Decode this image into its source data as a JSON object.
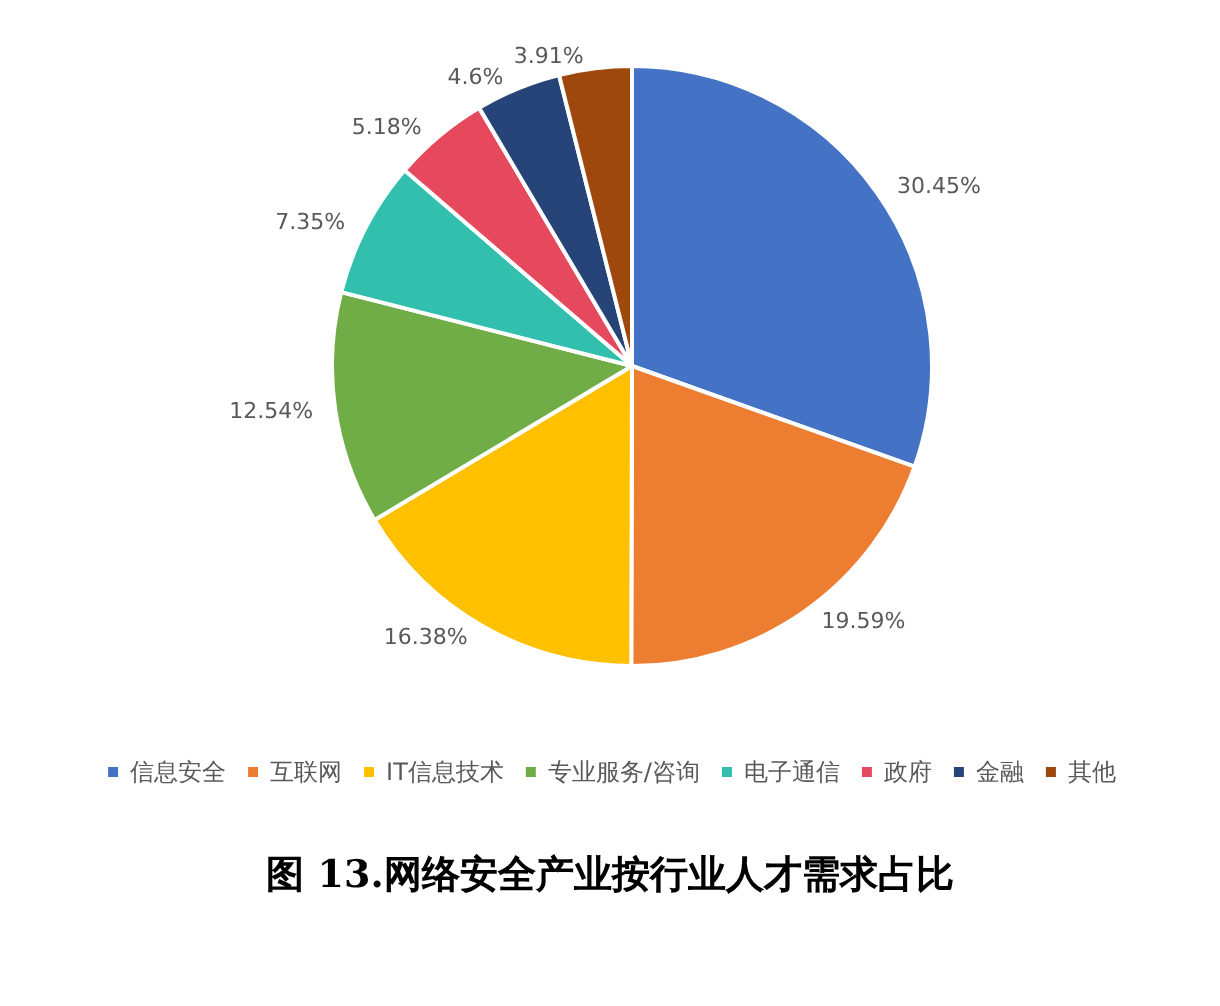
{
  "chart_data": {
    "type": "pie",
    "title": "图 13.网络安全产业按行业人才需求占比",
    "categories": [
      "信息安全",
      "互联网",
      "IT信息技术",
      "专业服务/咨询",
      "电子通信",
      "政府",
      "金融",
      "其他"
    ],
    "values": [
      30.45,
      19.59,
      16.38,
      12.54,
      7.35,
      5.18,
      4.6,
      3.91
    ],
    "value_labels": [
      "30.45%",
      "19.59%",
      "16.38%",
      "12.54%",
      "7.35%",
      "5.18%",
      "4.6%",
      "3.91%"
    ],
    "colors": [
      "#4472c4",
      "#ed7d31",
      "#ffc000",
      "#70ad47",
      "#33bfae",
      "#e6495e",
      "#264478",
      "#9e480e"
    ],
    "legend": "bottom"
  }
}
